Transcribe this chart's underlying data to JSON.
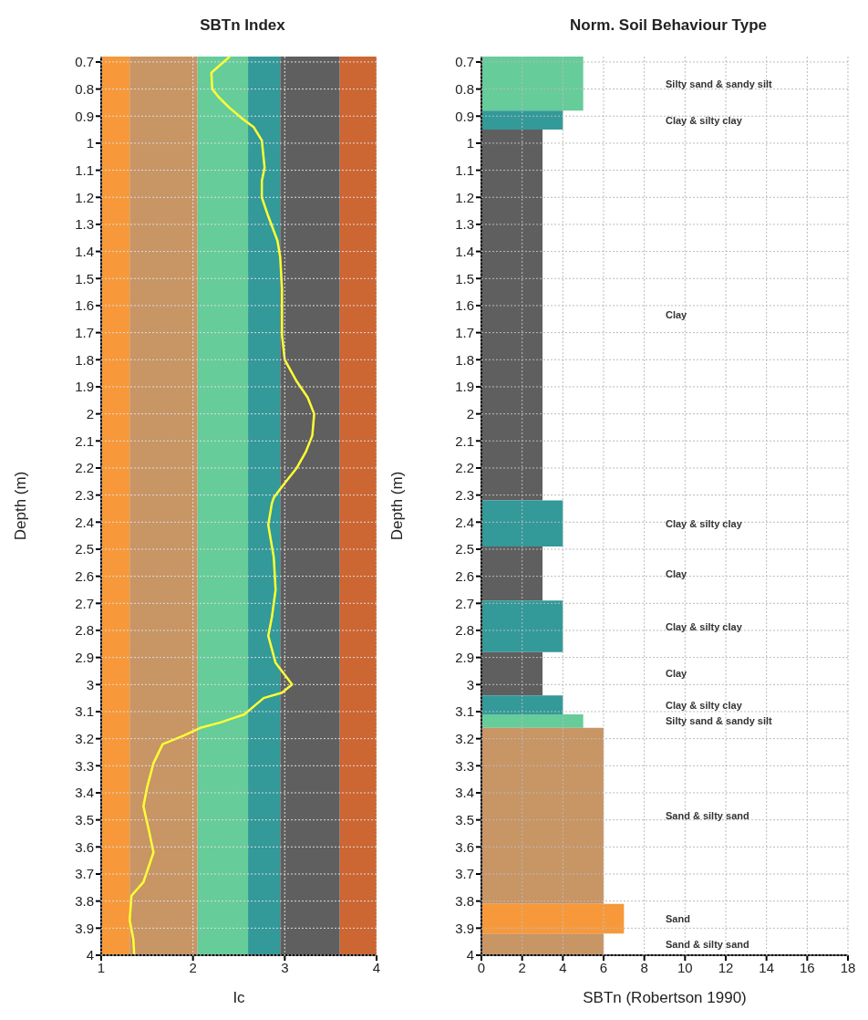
{
  "chart_data": [
    {
      "type": "line",
      "title": "SBTn Index",
      "xlabel": "Ic",
      "ylabel": "Depth (m)",
      "xlim": [
        1,
        4
      ],
      "xticks": [
        1,
        2,
        3,
        4
      ],
      "ylim": [
        4,
        0.68
      ],
      "yticks": [
        0.7,
        0.8,
        0.9,
        1,
        1.1,
        1.2,
        1.3,
        1.4,
        1.5,
        1.6,
        1.7,
        1.8,
        1.9,
        2,
        2.1,
        2.2,
        2.3,
        2.4,
        2.5,
        2.6,
        2.7,
        2.8,
        2.9,
        3,
        3.1,
        3.2,
        3.3,
        3.4,
        3.5,
        3.6,
        3.7,
        3.8,
        3.9,
        4
      ],
      "grid": true,
      "bands": [
        {
          "axis": "x",
          "from": 1,
          "to": 1.31,
          "color": "#f7993a"
        },
        {
          "axis": "x",
          "from": 1.31,
          "to": 2.05,
          "color": "#c89565"
        },
        {
          "axis": "x",
          "from": 2.05,
          "to": 2.6,
          "color": "#66cc99"
        },
        {
          "axis": "x",
          "from": 2.6,
          "to": 2.95,
          "color": "#339999"
        },
        {
          "axis": "x",
          "from": 2.95,
          "to": 3.6,
          "color": "#5f5f5f"
        },
        {
          "axis": "x",
          "from": 3.6,
          "to": 4,
          "color": "#cc6633"
        }
      ],
      "series": [
        {
          "type": "line",
          "color": "#ffff33",
          "x": [
            2.4,
            2.2,
            2.21,
            2.28,
            2.4,
            2.54,
            2.66,
            2.75,
            2.78,
            2.75,
            2.75,
            2.82,
            2.92,
            2.95,
            2.97,
            2.97,
            3.0,
            3.13,
            3.25,
            3.32,
            3.3,
            3.23,
            3.13,
            2.99,
            2.88,
            2.86,
            2.82,
            2.88,
            2.9,
            2.86,
            2.82,
            2.9,
            3.08,
            2.97,
            2.77,
            2.56,
            2.3,
            2.08,
            1.89,
            1.67,
            1.57,
            1.5,
            1.46,
            1.52,
            1.57,
            1.46,
            1.33,
            1.31,
            1.35,
            1.36
          ],
          "values": [
            0.68,
            0.74,
            0.8,
            0.83,
            0.87,
            0.91,
            0.94,
            0.99,
            1.09,
            1.14,
            1.2,
            1.27,
            1.36,
            1.42,
            1.54,
            1.71,
            1.8,
            1.88,
            1.94,
            2.0,
            2.08,
            2.14,
            2.2,
            2.26,
            2.31,
            2.33,
            2.41,
            2.53,
            2.65,
            2.75,
            2.82,
            2.92,
            3.0,
            3.03,
            3.05,
            3.11,
            3.14,
            3.16,
            3.19,
            3.22,
            3.29,
            3.38,
            3.45,
            3.54,
            3.62,
            3.73,
            3.78,
            3.87,
            3.94,
            4.0
          ]
        }
      ]
    },
    {
      "type": "histogram",
      "orientation": "horizontal",
      "title": "Norm. Soil Behaviour Type",
      "xlabel": "SBTn (Robertson 1990)",
      "ylabel": "Depth (m)",
      "xlim": [
        0,
        18
      ],
      "xticks": [
        0,
        2,
        4,
        6,
        8,
        10,
        12,
        14,
        16,
        18
      ],
      "ylim": [
        4,
        0.68
      ],
      "yticks": [
        0.7,
        0.8,
        0.9,
        1,
        1.1,
        1.2,
        1.3,
        1.4,
        1.5,
        1.6,
        1.7,
        1.8,
        1.9,
        2,
        2.1,
        2.2,
        2.3,
        2.4,
        2.5,
        2.6,
        2.7,
        2.8,
        2.9,
        3,
        3.1,
        3.2,
        3.3,
        3.4,
        3.5,
        3.6,
        3.7,
        3.8,
        3.9,
        4
      ],
      "grid": true,
      "bins": [
        0.68,
        0.88,
        0.95,
        2.32,
        2.49,
        2.69,
        2.88,
        3.04,
        3.11,
        3.16,
        3.81,
        3.92,
        4.0
      ],
      "values": [
        5,
        4,
        3,
        4,
        3,
        4,
        3,
        4,
        5,
        6,
        7,
        6
      ],
      "colors": [
        "#66cc99",
        "#339999",
        "#5f5f5f",
        "#339999",
        "#5f5f5f",
        "#339999",
        "#5f5f5f",
        "#339999",
        "#66cc99",
        "#c89565",
        "#f7993a",
        "#c89565"
      ],
      "annotations": [
        "Silty sand & sandy silt",
        "Clay & silty clay",
        "Clay",
        "Clay & silty clay",
        "Clay",
        "Clay & silty clay",
        "Clay",
        "Clay & silty clay",
        "Silty sand & sandy silt",
        "Sand & silty sand",
        "Sand",
        "Sand & silty sand"
      ]
    }
  ]
}
